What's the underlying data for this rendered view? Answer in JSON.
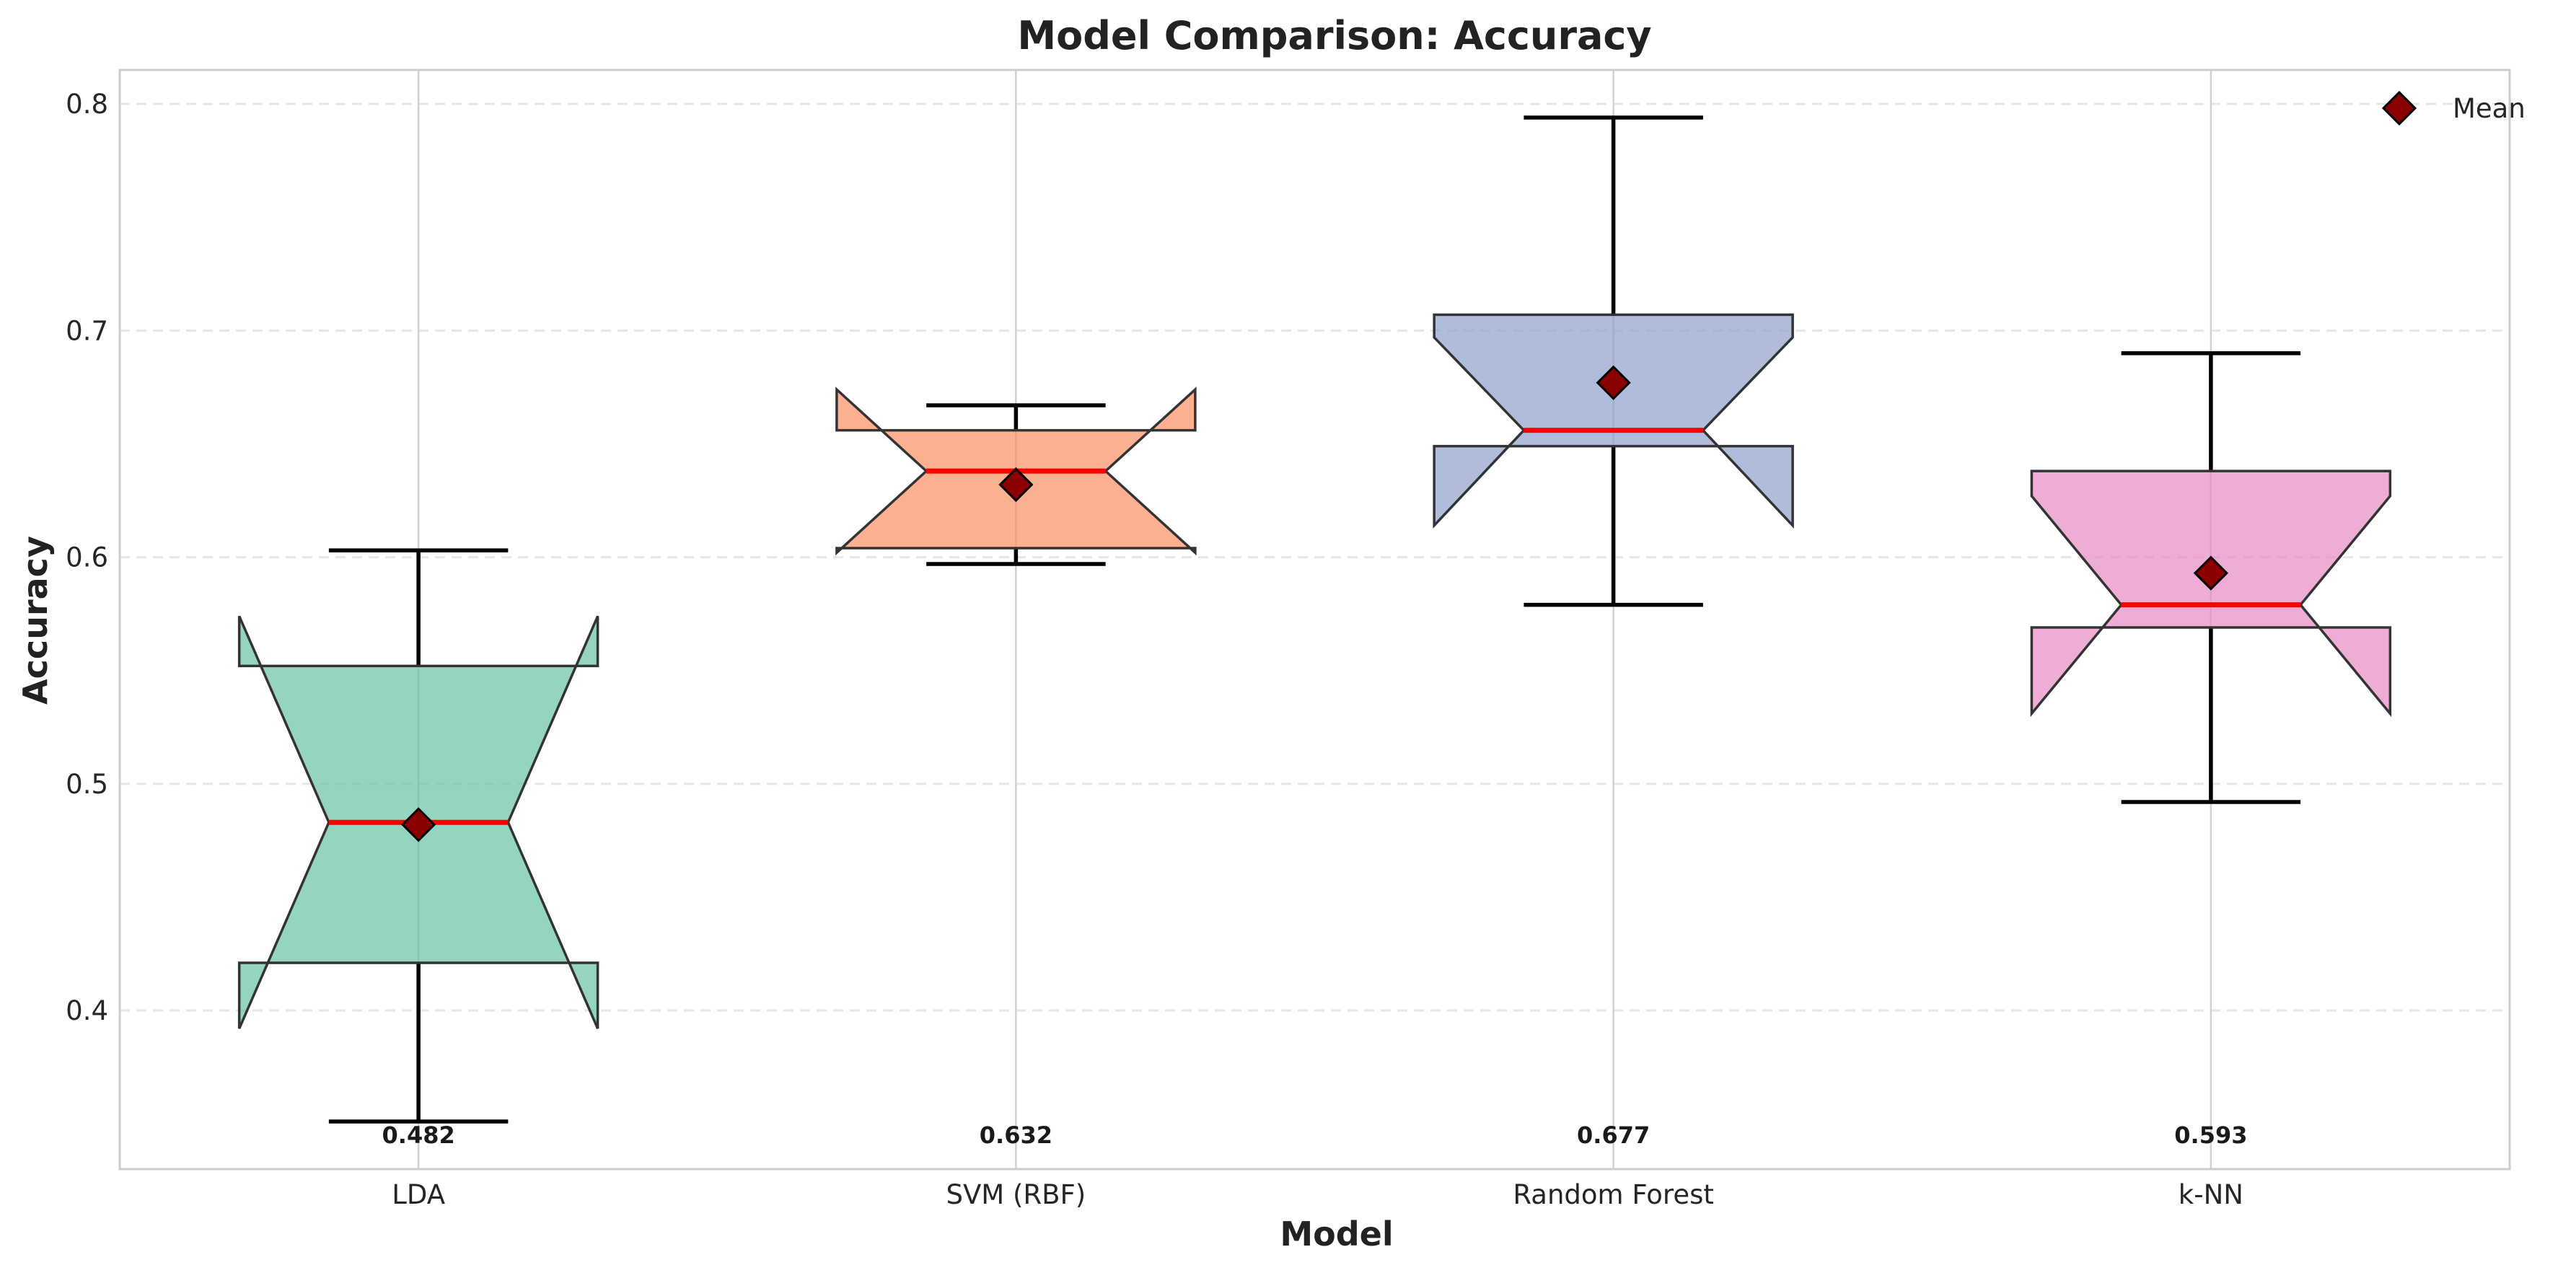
{
  "chart_data": {
    "type": "box",
    "title": "Model Comparison: Accuracy",
    "xlabel": "Model",
    "ylabel": "Accuracy",
    "ylim": [
      0.33,
      0.815
    ],
    "yticks": [
      0.4,
      0.5,
      0.6,
      0.7,
      0.8
    ],
    "ytick_labels": [
      "0.4",
      "0.5",
      "0.6",
      "0.7",
      "0.8"
    ],
    "grid": true,
    "notched": true,
    "legend": {
      "position": "top-right",
      "entries": [
        {
          "label": "Mean",
          "marker": "diamond",
          "color": "#8b0000"
        }
      ]
    },
    "median_color": "#ff0000",
    "categories": [
      "LDA",
      "SVM (RBF)",
      "Random Forest",
      "k-NN"
    ],
    "boxes": [
      {
        "category": "LDA",
        "whisker_low": 0.351,
        "q1": 0.421,
        "median": 0.483,
        "q3": 0.552,
        "whisker_high": 0.603,
        "notch_low": 0.392,
        "notch_high": 0.574,
        "mean": 0.482,
        "mean_label": "0.482",
        "color": "#66c2a5"
      },
      {
        "category": "SVM (RBF)",
        "whisker_low": 0.597,
        "q1": 0.604,
        "median": 0.638,
        "q3": 0.656,
        "whisker_high": 0.667,
        "notch_low": 0.602,
        "notch_high": 0.674,
        "mean": 0.632,
        "mean_label": "0.632",
        "color": "#fc8d62"
      },
      {
        "category": "Random Forest",
        "whisker_low": 0.579,
        "q1": 0.649,
        "median": 0.656,
        "q3": 0.707,
        "whisker_high": 0.794,
        "notch_low": 0.614,
        "notch_high": 0.697,
        "mean": 0.677,
        "mean_label": "0.677",
        "color": "#8da0cb"
      },
      {
        "category": "k-NN",
        "whisker_low": 0.492,
        "q1": 0.569,
        "median": 0.579,
        "q3": 0.638,
        "whisker_high": 0.69,
        "notch_low": 0.531,
        "notch_high": 0.627,
        "mean": 0.593,
        "mean_label": "0.593",
        "color": "#e78ac3"
      }
    ]
  }
}
